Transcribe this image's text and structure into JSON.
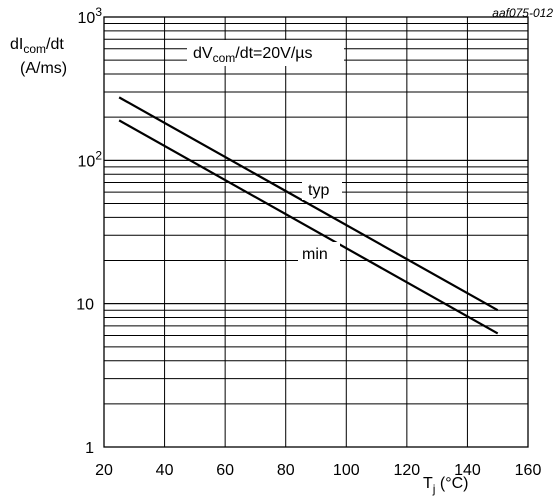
{
  "figure_id": "aaf075-012",
  "chart_data": {
    "type": "line",
    "figure_id": "aaf075-012",
    "ylabel": {
      "line1_base": "dI",
      "line1_sub": "com",
      "line1_tail": "/dt",
      "line2": "(A/ms)"
    },
    "xlabel": {
      "base": "T",
      "sub": "j",
      "tail": " (°C)"
    },
    "xlim": [
      20,
      160
    ],
    "ylim": [
      1,
      1000
    ],
    "yscale": "log",
    "grid": true,
    "x_ticks": [
      "20",
      "40",
      "60",
      "80",
      "100",
      "120",
      "140",
      "160"
    ],
    "y_ticks": [
      {
        "value": 1,
        "base": "1",
        "exp": ""
      },
      {
        "value": 10,
        "base": "10",
        "exp": ""
      },
      {
        "value": 100,
        "base": "10",
        "exp": "2"
      },
      {
        "value": 1000,
        "base": "10",
        "exp": "3"
      }
    ],
    "condition": {
      "base": "dV",
      "sub": "com",
      "tail": "/dt=20V/µs"
    },
    "series": [
      {
        "name": "typ",
        "x": [
          25,
          150
        ],
        "y": [
          275,
          9
        ]
      },
      {
        "name": "min",
        "x": [
          25,
          150
        ],
        "y": [
          190,
          6.2
        ]
      }
    ]
  }
}
